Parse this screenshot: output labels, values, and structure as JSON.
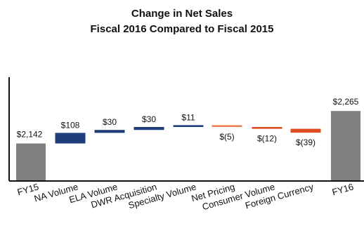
{
  "chart_data": {
    "type": "bar",
    "subtype": "waterfall",
    "title": "Change in Net Sales",
    "subtitle": "Fiscal 2016 Compared to Fiscal 2015",
    "categories": [
      "FY15",
      "NA Volume",
      "ELA Volume",
      "DWR Acquisition",
      "Specialty Volume",
      "Net Pricing",
      "Consumer Volume",
      "Foreign Currency",
      "FY16"
    ],
    "values": [
      2142,
      108,
      30,
      30,
      11,
      -5,
      -12,
      -39,
      2265
    ],
    "data_labels": [
      "$2,142",
      "$108",
      "$30",
      "$30",
      "$11",
      "$(5)",
      "$(12)",
      "$(39)",
      "$2,265"
    ],
    "bar_kinds": [
      "total",
      "increase",
      "increase",
      "increase",
      "increase",
      "decrease",
      "decrease",
      "decrease",
      "total"
    ],
    "colors": {
      "total": "#808080",
      "increase": "#1f3f7a",
      "decrease_light": "#f0805a",
      "decrease": "#e04a1e",
      "axis": "#111111"
    },
    "xlabel": "",
    "ylabel": "",
    "grid": false,
    "legend": "none"
  }
}
